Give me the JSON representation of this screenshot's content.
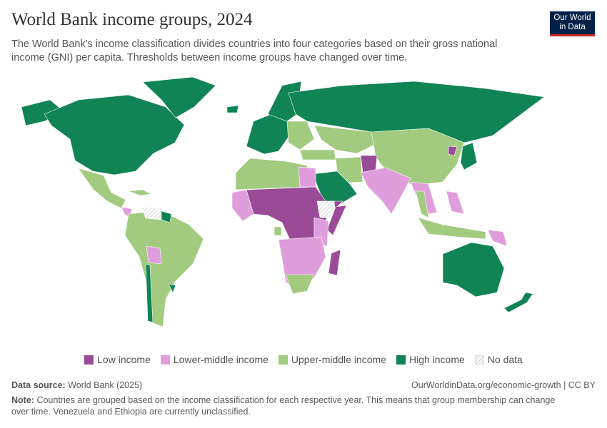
{
  "header": {
    "title": "World Bank income groups, 2024",
    "subtitle": "The World Bank's income classification divides countries into four categories based on their gross national income (GNI) per capita. Thresholds between income groups have changed over time.",
    "logo_text": "Our World in Data"
  },
  "legend": {
    "items": [
      {
        "label": "Low income",
        "color": "#9a4b98"
      },
      {
        "label": "Lower-middle income",
        "color": "#df9edb"
      },
      {
        "label": "Upper-middle income",
        "color": "#a2cb80"
      },
      {
        "label": "High income",
        "color": "#108454"
      },
      {
        "label": "No data",
        "color": "hatched"
      }
    ]
  },
  "footer": {
    "source_label": "Data source:",
    "source_value": "World Bank (2025)",
    "url": "OurWorldinData.org/economic-growth | CC BY",
    "note_label": "Note:",
    "note_value": "Countries are grouped based on the income classification for each respective year. This means that group membership can change over time. Venezuela and Ethiopia are currently unclassified."
  }
}
